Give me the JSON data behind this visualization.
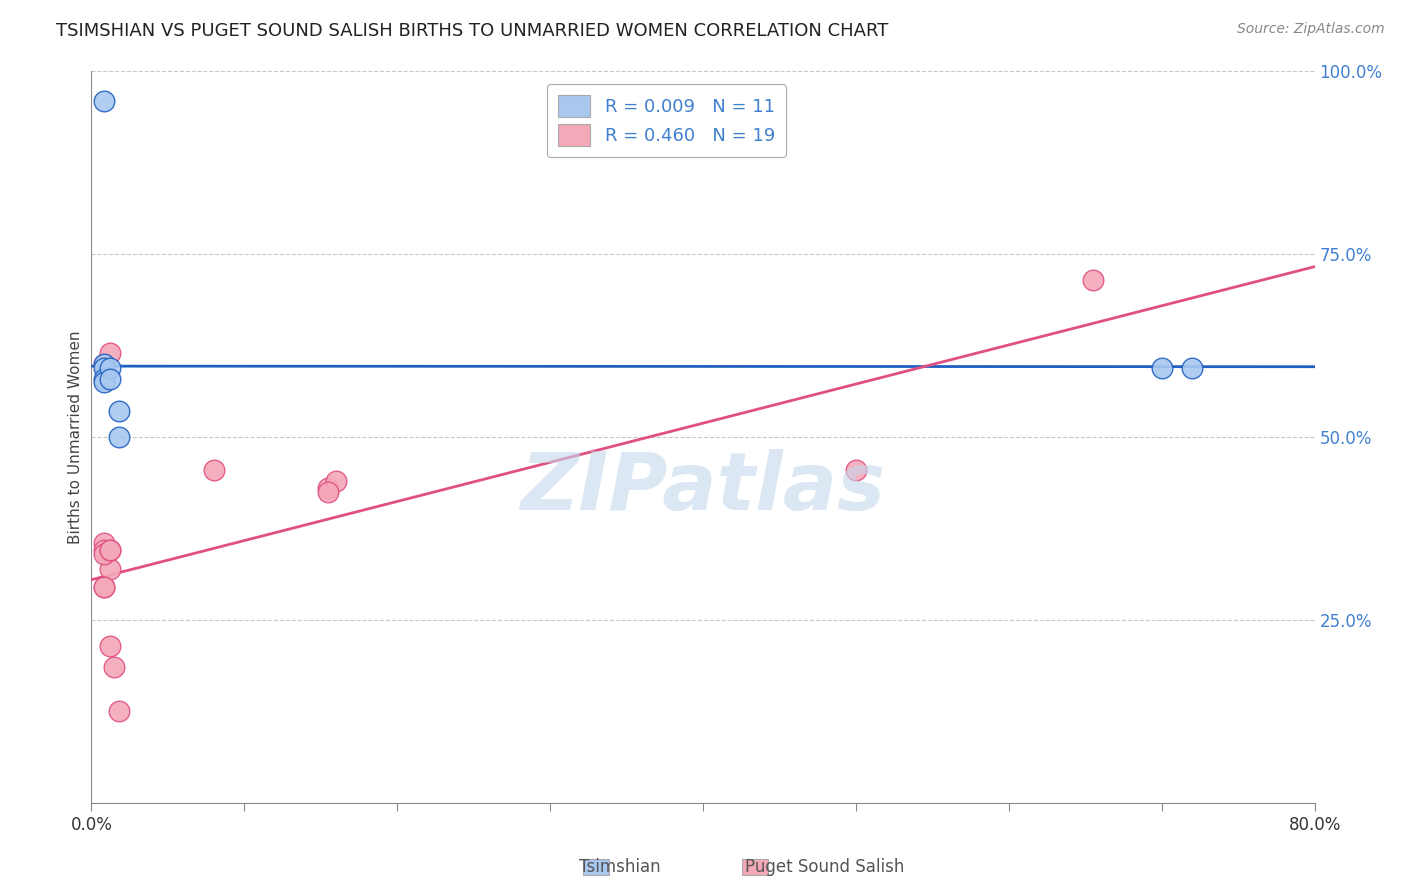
{
  "title": "TSIMSHIAN VS PUGET SOUND SALISH BIRTHS TO UNMARRIED WOMEN CORRELATION CHART",
  "source": "Source: ZipAtlas.com",
  "xlabel_tsimshian": "Tsimshian",
  "xlabel_puget": "Puget Sound Salish",
  "ylabel": "Births to Unmarried Women",
  "xlim": [
    0.0,
    0.8
  ],
  "ylim": [
    0.0,
    1.0
  ],
  "xtick_positions": [
    0.0,
    0.1,
    0.2,
    0.3,
    0.4,
    0.5,
    0.6,
    0.7,
    0.8
  ],
  "ytick_right": [
    0.25,
    0.5,
    0.75,
    1.0
  ],
  "ytick_right_labels": [
    "25.0%",
    "50.0%",
    "75.0%",
    "100.0%"
  ],
  "tsimshian_R": "0.009",
  "tsimshian_N": "11",
  "puget_R": "0.460",
  "puget_N": "19",
  "tsimshian_color": "#a8c8f0",
  "puget_color": "#f4a8b8",
  "tsimshian_line_color": "#2060c0",
  "puget_line_color": "#e05080",
  "right_axis_color": "#4080d0",
  "tsimshian_points_x": [
    0.008,
    0.008,
    0.008,
    0.008,
    0.008,
    0.012,
    0.012,
    0.018,
    0.018,
    0.7,
    0.72
  ],
  "tsimshian_points_y": [
    0.96,
    0.6,
    0.595,
    0.58,
    0.575,
    0.595,
    0.58,
    0.535,
    0.5,
    0.595,
    0.595
  ],
  "puget_points_x": [
    0.008,
    0.012,
    0.012,
    0.008,
    0.008,
    0.008,
    0.008,
    0.008,
    0.08,
    0.155,
    0.16,
    0.155,
    0.5,
    0.655,
    0.012,
    0.015,
    0.018,
    0.012,
    0.012
  ],
  "puget_points_y": [
    0.6,
    0.615,
    0.32,
    0.355,
    0.345,
    0.34,
    0.295,
    0.295,
    0.455,
    0.43,
    0.44,
    0.425,
    0.455,
    0.715,
    0.215,
    0.185,
    0.125,
    0.345,
    0.345
  ],
  "tsimshian_line_y_intercept": 0.597,
  "tsimshian_line_slope": -0.001,
  "puget_line_y_intercept": 0.305,
  "puget_line_slope": 0.535,
  "watermark": "ZIPatlas",
  "background_color": "#ffffff",
  "grid_color": "#c8c8c8"
}
